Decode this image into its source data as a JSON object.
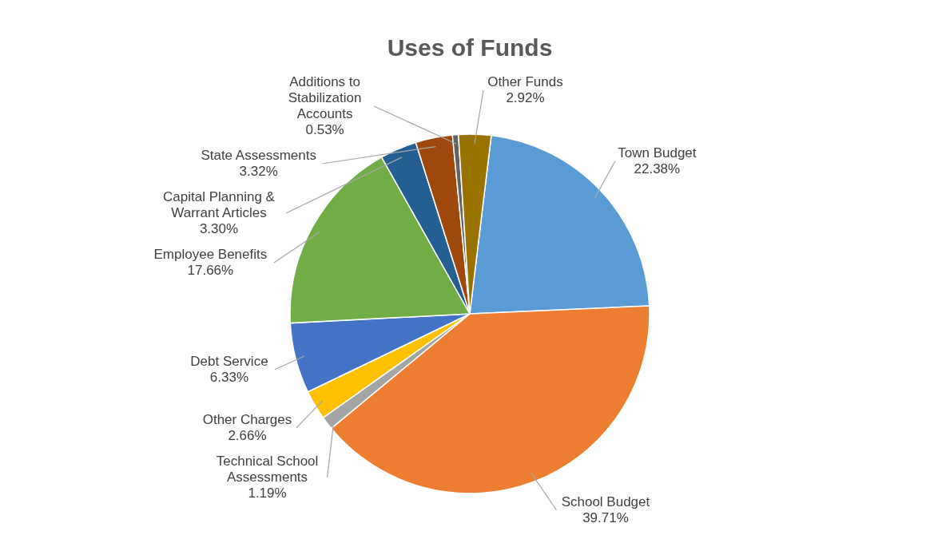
{
  "chart_data": {
    "type": "pie",
    "title": "Uses of Funds",
    "categories": [
      "Town Budget",
      "School Budget",
      "Technical School Assessments",
      "Other Charges",
      "Debt Service",
      "Employee Benefits",
      "Capital Planning & Warrant Articles",
      "State Assessments",
      "Additions to Stabilization Accounts",
      "Other Funds"
    ],
    "values": [
      22.38,
      39.71,
      1.19,
      2.66,
      6.33,
      17.66,
      3.3,
      3.32,
      0.53,
      2.92
    ],
    "value_labels": [
      "22.38%",
      "39.71%",
      "1.19%",
      "2.66%",
      "6.33%",
      "17.66%",
      "3.30%",
      "3.32%",
      "0.53%",
      "2.92%"
    ],
    "colors": [
      "#5b9bd5",
      "#ed7d31",
      "#a5a5a5",
      "#ffc000",
      "#4472c4",
      "#70ad47",
      "#255e91",
      "#9e480e",
      "#636363",
      "#997300"
    ]
  }
}
